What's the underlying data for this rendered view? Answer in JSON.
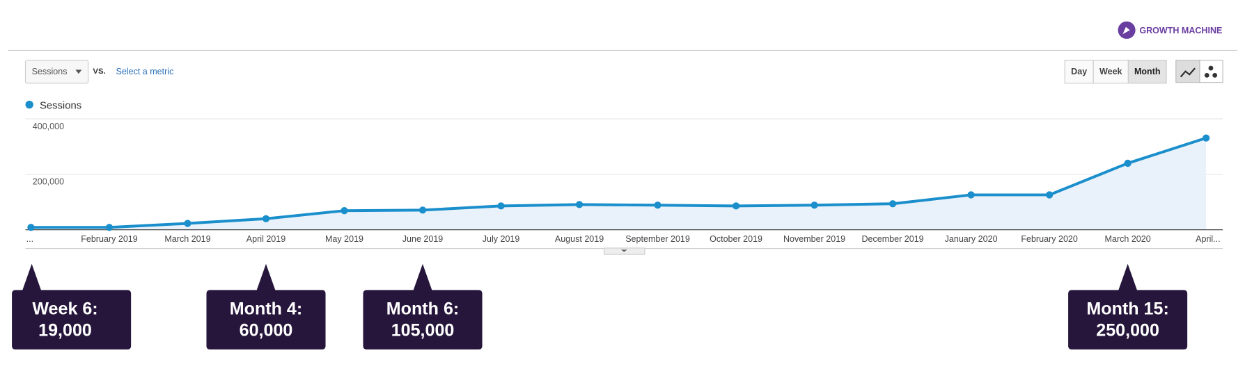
{
  "brand": "GROWTH MACHINE",
  "controls": {
    "metric": "Sessions",
    "vs": "VS.",
    "select": "Select a metric",
    "periods": [
      "Day",
      "Week",
      "Month"
    ],
    "active_period": "Month"
  },
  "chart_data": {
    "type": "area-line",
    "legend": "Sessions",
    "color": "#1a8fcc",
    "fill": "#e9f2fa",
    "categories": [
      "...",
      "February 2019",
      "March 2019",
      "April 2019",
      "May 2019",
      "June 2019",
      "July 2019",
      "August 2019",
      "September 2019",
      "October 2019",
      "November 2019",
      "December 2019",
      "January 2020",
      "February 2020",
      "March 2020",
      "April..."
    ],
    "series": [
      {
        "name": "Sessions",
        "color": "#1a8fcc",
        "values": [
          8600,
          8600,
          23000,
          40000,
          69000,
          71000,
          86000,
          91000,
          89000,
          86000,
          89000,
          94000,
          126000,
          126000,
          240000,
          331000
        ]
      }
    ],
    "ylim": [
      0,
      400000
    ],
    "yticks": [
      {
        "value": 200000,
        "label": "200,000"
      },
      {
        "value": 400000,
        "label": "400,000"
      }
    ],
    "grid": true
  },
  "annotations": [
    {
      "lines": [
        "Week 6:",
        "19,000"
      ],
      "category": 0
    },
    {
      "lines": [
        "Month 4:",
        "60,000"
      ],
      "category": 3
    },
    {
      "lines": [
        "Month 6:",
        "105,000"
      ],
      "category": 5
    },
    {
      "lines": [
        "Month 15:",
        "250,000"
      ],
      "category": 14
    }
  ]
}
